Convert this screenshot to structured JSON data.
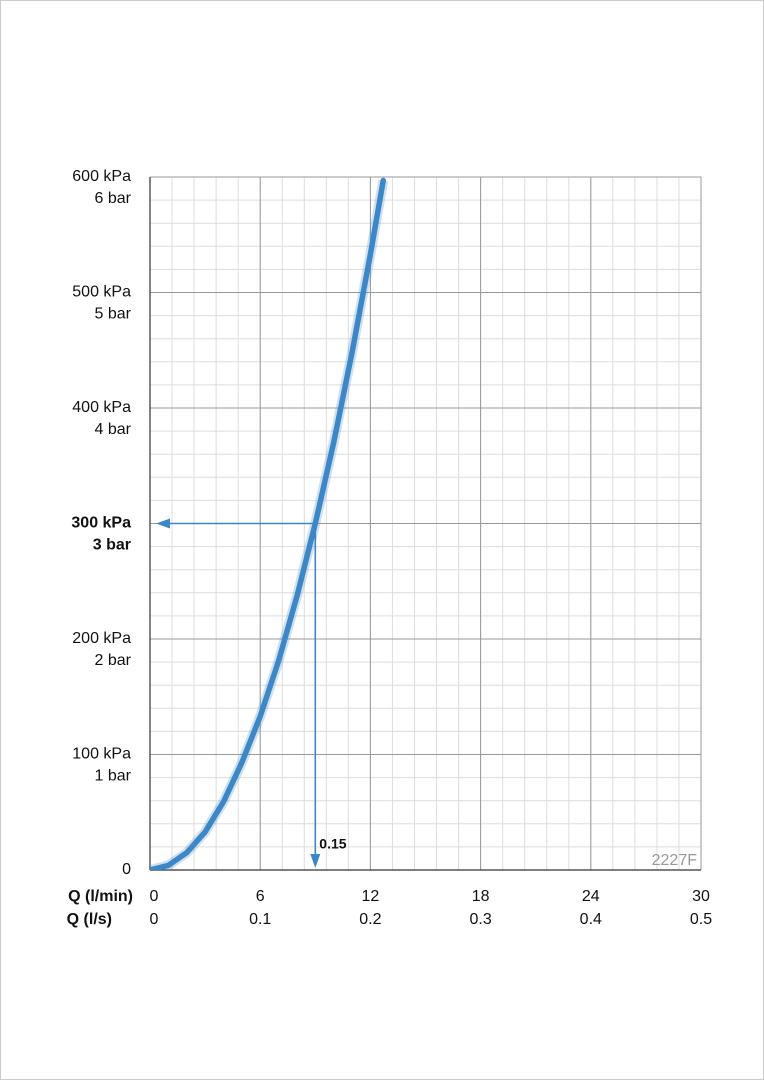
{
  "chart_data": {
    "type": "line",
    "xlabel": "Q (l/min)",
    "x2label": "Q (l/s)",
    "xlim": [
      0,
      30
    ],
    "xticks": [
      0,
      6,
      12,
      18,
      24,
      30
    ],
    "x2lim": [
      0,
      0.5
    ],
    "x2ticks": [
      0,
      0.1,
      0.2,
      0.3,
      0.4,
      0.5
    ],
    "ylim": [
      0,
      600
    ],
    "yticks": [
      0,
      {
        "value": 100,
        "label": "100 kPa"
      },
      {
        "value": 200,
        "label": "200 kPa"
      },
      {
        "value": 300,
        "label": "300 kPa"
      },
      {
        "value": 400,
        "label": "400 kPa"
      },
      {
        "value": 500,
        "label": "500 kPa"
      },
      {
        "value": 600,
        "label": "600 kPa"
      }
    ],
    "y2lim": [
      0,
      6
    ],
    "y2ticks": [
      {
        "value": 1,
        "label": "1 bar"
      },
      {
        "value": 2,
        "label": "2 bar"
      },
      {
        "value": 3,
        "label": "3 bar"
      },
      {
        "value": 4,
        "label": "4 bar"
      },
      {
        "value": 5,
        "label": "5 bar"
      },
      {
        "value": 6,
        "label": "6 bar"
      }
    ],
    "grid": true,
    "series": [
      {
        "color": "#3d87c6",
        "x": [
          0,
          1,
          2,
          3,
          4,
          5,
          6,
          7,
          8,
          9,
          10,
          11,
          12,
          12.7
        ],
        "values": [
          0,
          4,
          15,
          33,
          59,
          93,
          133,
          181,
          237,
          300,
          370,
          448,
          533,
          597
        ]
      }
    ],
    "annotation": {
      "x2": 0.15,
      "y": 300,
      "label": "0.15",
      "color": "#3d87c6"
    },
    "code": "2227F"
  }
}
